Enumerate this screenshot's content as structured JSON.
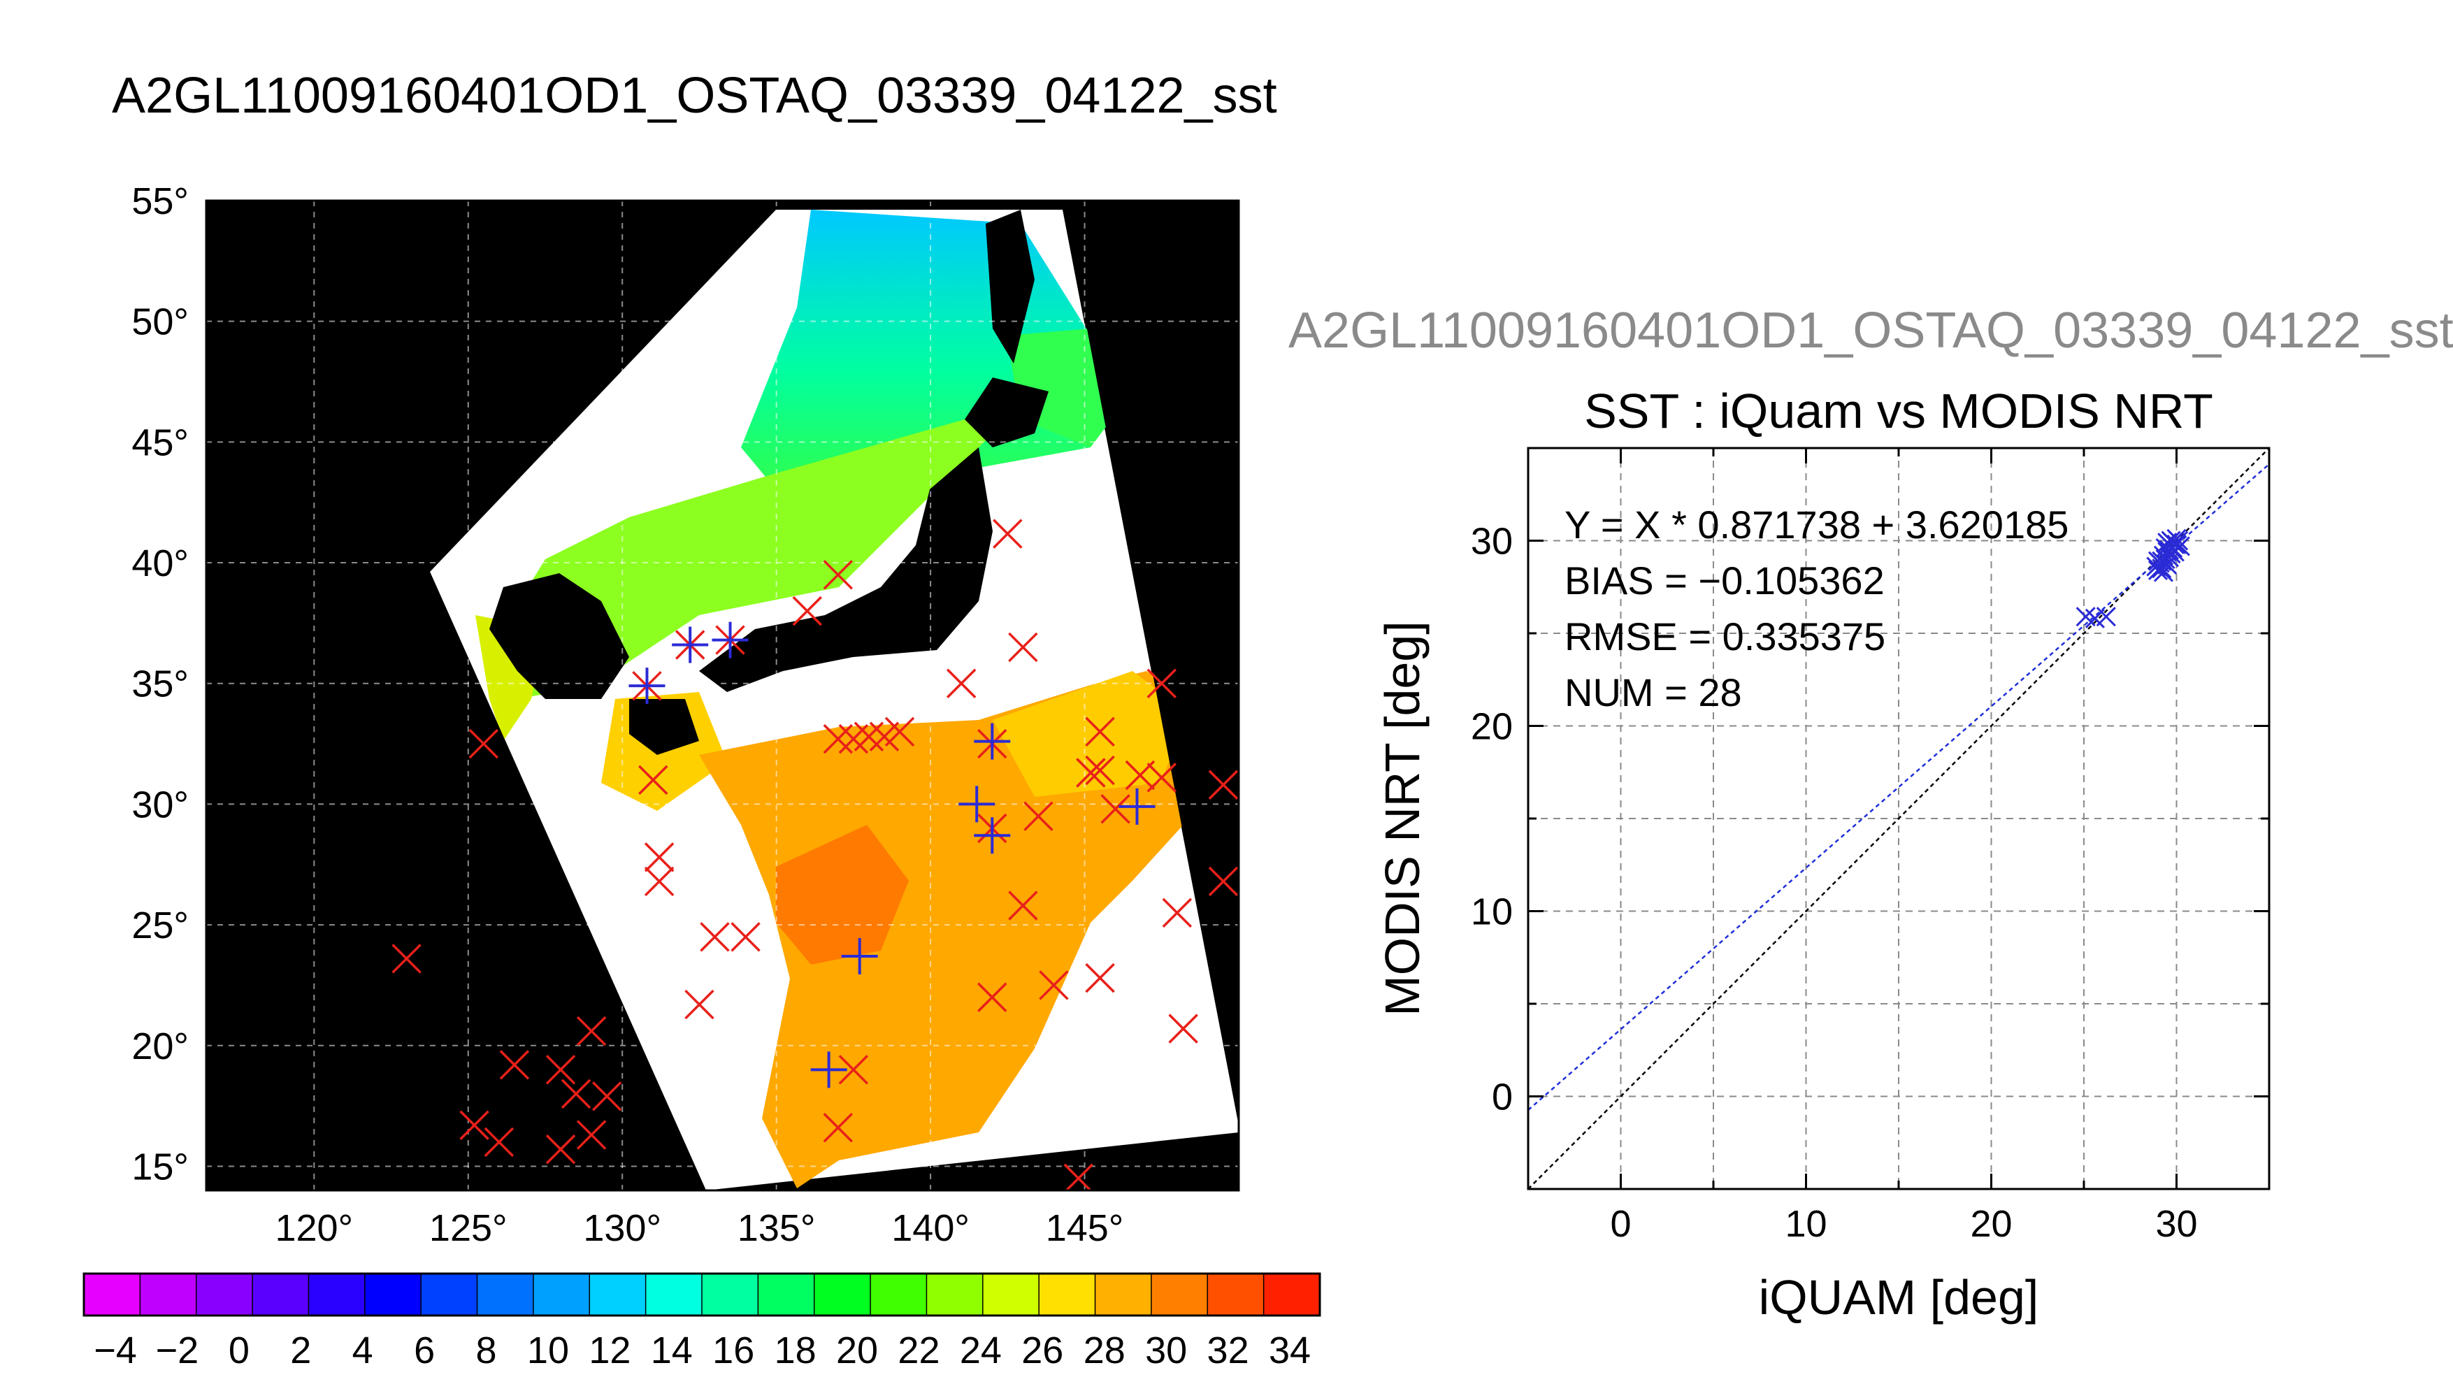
{
  "page": {
    "title": "A2GL11009160401OD1_OSTAQ_03339_04122_sst",
    "scatter_header": "A2GL11009160401OD1_OSTAQ_03339_04122_sst"
  },
  "colors": {
    "land": "#000000",
    "match_marker": "#e8201a",
    "cross_marker": "#2b2bd6",
    "regression_line": "#1f2fd8",
    "identity_line": "#000000",
    "grid": "#8a8a8a"
  },
  "chart_data": [
    {
      "type": "heatmap",
      "title": "",
      "lon_range": [
        116.5,
        150
      ],
      "lat_range": [
        14,
        55
      ],
      "lon_ticks": [
        "120°",
        "125°",
        "130°",
        "135°",
        "140°",
        "145°"
      ],
      "lat_ticks": [
        "55°",
        "50°",
        "45°",
        "40°",
        "35°",
        "30°",
        "25°",
        "20°",
        "15°"
      ],
      "colorbar": {
        "labels": [
          "-4",
          "-2",
          "0",
          "2",
          "4",
          "6",
          "8",
          "10",
          "12",
          "14",
          "16",
          "18",
          "20",
          "22",
          "24",
          "26",
          "28",
          "30",
          "32",
          "34"
        ],
        "colors": [
          "#e600ff",
          "#c000ff",
          "#8a00ff",
          "#5a00ff",
          "#2a00ff",
          "#0000ff",
          "#0040ff",
          "#0070ff",
          "#00a0ff",
          "#00d0ff",
          "#00ffe0",
          "#00ffa0",
          "#00ff60",
          "#00ff20",
          "#40ff00",
          "#90ff00",
          "#d0ff00",
          "#ffe000",
          "#ffb000",
          "#ff8000",
          "#ff5000",
          "#ff2000"
        ]
      },
      "red_x_matchups": [
        [
          137,
          39.5
        ],
        [
          136,
          38
        ],
        [
          142.5,
          41.2
        ],
        [
          143,
          36.5
        ],
        [
          141,
          35
        ],
        [
          137,
          32.7
        ],
        [
          137.5,
          32.7
        ],
        [
          138,
          32.8
        ],
        [
          138.5,
          32.8
        ],
        [
          139,
          33
        ],
        [
          142,
          32.5
        ],
        [
          145.5,
          33
        ],
        [
          147.5,
          35
        ],
        [
          145.2,
          31.3
        ],
        [
          145.5,
          31.4
        ],
        [
          146.8,
          31.2
        ],
        [
          147.5,
          31.1
        ],
        [
          149.5,
          30.8
        ],
        [
          143.5,
          29.5
        ],
        [
          142,
          29
        ],
        [
          146,
          29.8
        ],
        [
          143,
          25.8
        ],
        [
          148,
          25.5
        ],
        [
          149.5,
          26.8
        ],
        [
          144,
          22.5
        ],
        [
          145.5,
          22.8
        ],
        [
          142,
          22
        ],
        [
          148.2,
          20.7
        ],
        [
          144.8,
          14.5
        ],
        [
          131,
          31
        ],
        [
          131.2,
          27.8
        ],
        [
          131.2,
          26.8
        ],
        [
          132.5,
          21.7
        ],
        [
          133,
          24.5
        ],
        [
          134,
          24.5
        ],
        [
          125.5,
          32.5
        ],
        [
          123,
          23.6
        ],
        [
          129,
          20.6
        ],
        [
          126.5,
          19.2
        ],
        [
          128,
          19
        ],
        [
          128.5,
          18
        ],
        [
          129.5,
          17.9
        ],
        [
          128,
          15.7
        ],
        [
          129,
          16.3
        ],
        [
          125.2,
          16.7
        ],
        [
          126,
          16
        ],
        [
          137,
          16.6
        ],
        [
          137.5,
          19
        ],
        [
          133.5,
          36.8
        ],
        [
          132.2,
          36.6
        ],
        [
          130.8,
          34.9
        ]
      ],
      "blue_cross_matchups": [
        [
          142,
          32.6
        ],
        [
          141.5,
          30
        ],
        [
          142,
          28.7
        ],
        [
          146.7,
          29.9
        ],
        [
          137.7,
          23.7
        ],
        [
          136.7,
          19.0
        ],
        [
          133.5,
          36.8
        ],
        [
          132.2,
          36.6
        ],
        [
          130.8,
          34.9
        ]
      ]
    },
    {
      "type": "scatter",
      "title": "SST : iQuam vs MODIS NRT",
      "xlabel": "iQUAM [deg]",
      "ylabel": "MODIS NRT [deg]",
      "xlim": [
        -5,
        35
      ],
      "ylim": [
        -5,
        35
      ],
      "xticks": [
        0,
        10,
        20,
        30
      ],
      "yticks": [
        0,
        10,
        20,
        30
      ],
      "grid": true,
      "annotations": [
        "Y = X * 0.871738 + 3.620185",
        "BIAS = -0.105362",
        "RMSE = 0.335375",
        "NUM = 28"
      ],
      "regression": {
        "slope": 0.871738,
        "intercept": 3.620185
      },
      "identity_line": true,
      "points": [
        [
          25.1,
          25.9
        ],
        [
          25.6,
          25.8
        ],
        [
          26.2,
          25.9
        ],
        [
          28.9,
          28.6
        ],
        [
          29.0,
          28.4
        ],
        [
          29.1,
          28.8
        ],
        [
          29.2,
          28.5
        ],
        [
          29.3,
          28.3
        ],
        [
          29.0,
          28.9
        ],
        [
          29.4,
          29.0
        ],
        [
          29.5,
          28.7
        ],
        [
          29.3,
          29.2
        ],
        [
          29.6,
          29.5
        ],
        [
          29.5,
          29.9
        ],
        [
          29.8,
          29.6
        ],
        [
          29.7,
          30.0
        ],
        [
          29.9,
          29.4
        ],
        [
          30.0,
          29.8
        ],
        [
          30.1,
          30.0
        ],
        [
          29.6,
          29.1
        ],
        [
          29.8,
          29.9
        ],
        [
          30.2,
          29.7
        ],
        [
          29.4,
          29.6
        ],
        [
          29.7,
          29.3
        ],
        [
          30.0,
          30.1
        ],
        [
          29.9,
          29.8
        ],
        [
          29.2,
          28.9
        ],
        [
          29.5,
          29.4
        ]
      ]
    }
  ]
}
